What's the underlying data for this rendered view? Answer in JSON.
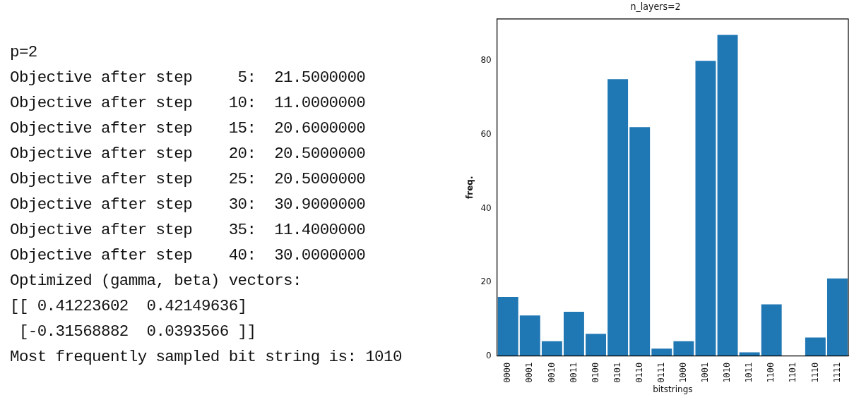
{
  "chart_data": [
    {
      "type": "other",
      "annotations": [
        "p=2",
        "Objective after step     5:  21.5000000",
        "Objective after step    10:  11.0000000",
        "Objective after step    15:  20.6000000",
        "Objective after step    20:  20.5000000",
        "Objective after step    25:  20.5000000",
        "Objective after step    30:  30.9000000",
        "Objective after step    35:  11.4000000",
        "Objective after step    40:  30.0000000",
        "Optimized (gamma, beta) vectors:",
        "[[ 0.41223602  0.42149636]",
        " [-0.31568882  0.0393566 ]]",
        "Most frequently sampled bit string is: 1010"
      ]
    },
    {
      "type": "bar",
      "title": "n_layers=2",
      "xlabel": "bitstrings",
      "ylabel": "freq.",
      "categories": [
        "0000",
        "0001",
        "0010",
        "0011",
        "0100",
        "0101",
        "0110",
        "0111",
        "1000",
        "1001",
        "1010",
        "1011",
        "1100",
        "1101",
        "1110",
        "1111"
      ],
      "values": [
        16,
        11,
        4,
        12,
        6,
        75,
        62,
        2,
        4,
        80,
        87,
        1,
        14,
        0,
        5,
        21
      ],
      "color": "#1f77b4",
      "ylim": [
        0,
        91.35
      ],
      "yticks": [
        0,
        20,
        40,
        60,
        80
      ],
      "grid": false,
      "legend": false
    }
  ]
}
